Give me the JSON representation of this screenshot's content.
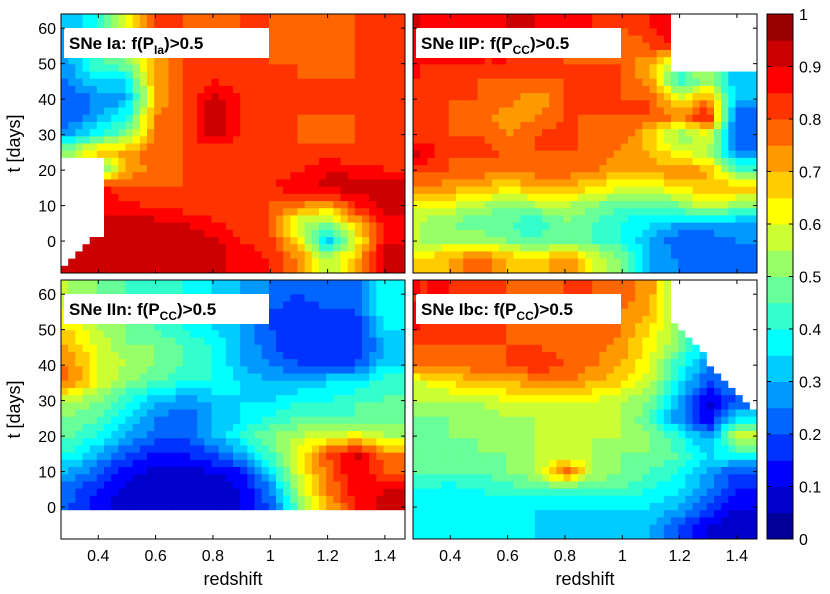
{
  "chart_data": {
    "type": "heatmap",
    "colormap": "jet",
    "colorbar": {
      "range": [
        0,
        1
      ],
      "ticks": [
        "0",
        "0.1",
        "0.2",
        "0.3",
        "0.4",
        "0.5",
        "0.6",
        "0.7",
        "0.8",
        "0.9",
        "1"
      ]
    },
    "x_range": [
      0.27,
      1.47
    ],
    "y_range": [
      -9,
      64
    ],
    "x_ticks": [
      "0.4",
      "0.6",
      "0.8",
      "1",
      "1.2",
      "1.4"
    ],
    "y_ticks": [
      "0",
      "10",
      "20",
      "30",
      "40",
      "50",
      "60"
    ],
    "xlabel": "redshift",
    "ylabel": "t [days]",
    "x": [
      0.3,
      0.4,
      0.5,
      0.6,
      0.7,
      0.8,
      0.9,
      1.0,
      1.1,
      1.2,
      1.3,
      1.4
    ],
    "y": [
      -5,
      0,
      5,
      10,
      15,
      20,
      25,
      30,
      35,
      40,
      45,
      50,
      55,
      60
    ],
    "panels": [
      {
        "id": "ia",
        "title_pre": "SNe Ia: f(P",
        "title_sub": "Ia",
        "title_post": ")>0.5",
        "z": [
          [
            0.9,
            0.9,
            0.93,
            0.93,
            0.93,
            0.92,
            0.88,
            0.85,
            0.75,
            0.55,
            0.7,
            0.92
          ],
          [
            0.9,
            0.9,
            0.93,
            0.93,
            0.93,
            0.92,
            0.85,
            0.82,
            0.65,
            0.3,
            0.6,
            0.9
          ],
          [
            0.9,
            0.9,
            0.92,
            0.92,
            0.9,
            0.86,
            0.82,
            0.8,
            0.55,
            0.5,
            0.7,
            0.88
          ],
          [
            0.9,
            0.9,
            0.86,
            0.84,
            0.82,
            0.8,
            0.8,
            0.8,
            0.75,
            0.7,
            0.85,
            0.92
          ],
          [
            0.9,
            0.9,
            0.8,
            0.8,
            0.8,
            0.8,
            0.82,
            0.85,
            0.88,
            0.92,
            0.93,
            0.93
          ],
          [
            0.3,
            0.4,
            0.7,
            0.78,
            0.8,
            0.8,
            0.8,
            0.82,
            0.85,
            0.9,
            0.88,
            0.85
          ],
          [
            0.55,
            0.7,
            0.72,
            0.78,
            0.8,
            0.82,
            0.8,
            0.8,
            0.8,
            0.82,
            0.8,
            0.8
          ],
          [
            0.3,
            0.4,
            0.5,
            0.75,
            0.8,
            0.93,
            0.85,
            0.8,
            0.8,
            0.78,
            0.8,
            0.8
          ],
          [
            0.2,
            0.3,
            0.4,
            0.75,
            0.8,
            0.93,
            0.85,
            0.8,
            0.8,
            0.8,
            0.8,
            0.8
          ],
          [
            0.2,
            0.25,
            0.3,
            0.7,
            0.8,
            0.93,
            0.85,
            0.8,
            0.8,
            0.8,
            0.8,
            0.8
          ],
          [
            0.25,
            0.35,
            0.35,
            0.72,
            0.8,
            0.85,
            0.8,
            0.8,
            0.8,
            0.8,
            0.8,
            0.8
          ],
          [
            0.3,
            0.45,
            0.5,
            0.7,
            0.8,
            0.8,
            0.8,
            0.8,
            0.8,
            0.75,
            0.8,
            0.8
          ],
          [
            0.25,
            0.35,
            0.55,
            0.75,
            0.8,
            0.8,
            0.8,
            0.8,
            0.78,
            0.78,
            0.8,
            0.8
          ],
          [
            0.3,
            0.4,
            0.6,
            0.8,
            0.8,
            0.78,
            0.8,
            0.8,
            0.75,
            0.78,
            0.8,
            0.8
          ]
        ]
      },
      {
        "id": "iip",
        "title_pre": "SNe IIP: f(P",
        "title_sub": "CC",
        "title_post": ")>0.5",
        "z": [
          [
            0.65,
            0.7,
            0.8,
            0.7,
            0.65,
            0.75,
            0.6,
            0.5,
            0.3,
            0.25,
            0.2,
            0.2
          ],
          [
            0.55,
            0.55,
            0.55,
            0.5,
            0.45,
            0.5,
            0.45,
            0.4,
            0.3,
            0.2,
            0.2,
            0.25
          ],
          [
            0.55,
            0.5,
            0.45,
            0.45,
            0.4,
            0.5,
            0.45,
            0.4,
            0.35,
            0.3,
            0.3,
            0.3
          ],
          [
            0.6,
            0.6,
            0.55,
            0.5,
            0.55,
            0.55,
            0.5,
            0.45,
            0.45,
            0.5,
            0.6,
            0.5
          ],
          [
            0.75,
            0.72,
            0.7,
            0.65,
            0.7,
            0.7,
            0.65,
            0.6,
            0.6,
            0.65,
            0.7,
            0.7
          ],
          [
            0.8,
            0.8,
            0.78,
            0.75,
            0.78,
            0.78,
            0.75,
            0.7,
            0.72,
            0.75,
            0.7,
            0.45
          ],
          [
            0.92,
            0.8,
            0.82,
            0.8,
            0.8,
            0.8,
            0.8,
            0.72,
            0.7,
            0.6,
            0.55,
            0.25
          ],
          [
            0.8,
            0.8,
            0.8,
            0.75,
            0.8,
            0.82,
            0.78,
            0.8,
            0.65,
            0.5,
            0.6,
            0.2
          ],
          [
            0.8,
            0.8,
            0.78,
            0.7,
            0.75,
            0.8,
            0.8,
            0.8,
            0.8,
            0.75,
            0.88,
            0.2
          ],
          [
            0.82,
            0.8,
            0.8,
            0.78,
            0.7,
            0.8,
            0.8,
            0.8,
            0.8,
            0.6,
            0.75,
            0.3
          ],
          [
            0.85,
            0.8,
            0.8,
            0.8,
            0.8,
            0.8,
            0.8,
            0.8,
            0.72,
            0.4,
            0.55,
            0.3
          ],
          [
            0.85,
            0.85,
            0.85,
            0.85,
            0.8,
            0.8,
            0.8,
            0.8,
            0.7,
            0.45,
            0.6,
            0.3
          ],
          [
            0.88,
            0.85,
            0.85,
            0.85,
            0.85,
            0.8,
            0.78,
            0.75,
            0.8,
            0.85,
            0.8,
            0.3
          ],
          [
            0.9,
            0.88,
            0.88,
            0.9,
            0.9,
            0.88,
            0.85,
            0.8,
            0.85,
            0.92,
            0.8,
            0.3
          ]
        ]
      },
      {
        "id": "iin",
        "title_pre": "SNe IIn: f(P",
        "title_sub": "CC",
        "title_post": ")>0.5",
        "z": [
          [
            0.2,
            0.12,
            0.08,
            0.05,
            0.05,
            0.05,
            0.1,
            0.2,
            0.5,
            0.7,
            0.85,
            0.93
          ],
          [
            0.2,
            0.12,
            0.06,
            0.05,
            0.05,
            0.05,
            0.1,
            0.2,
            0.5,
            0.7,
            0.85,
            0.93
          ],
          [
            0.22,
            0.15,
            0.08,
            0.05,
            0.05,
            0.05,
            0.1,
            0.25,
            0.55,
            0.75,
            0.88,
            0.9
          ],
          [
            0.3,
            0.22,
            0.12,
            0.08,
            0.08,
            0.1,
            0.15,
            0.35,
            0.6,
            0.78,
            0.9,
            0.8
          ],
          [
            0.4,
            0.3,
            0.2,
            0.15,
            0.15,
            0.2,
            0.3,
            0.45,
            0.62,
            0.8,
            0.92,
            0.75
          ],
          [
            0.45,
            0.4,
            0.3,
            0.22,
            0.2,
            0.3,
            0.4,
            0.5,
            0.55,
            0.6,
            0.62,
            0.55
          ],
          [
            0.5,
            0.45,
            0.35,
            0.25,
            0.2,
            0.3,
            0.35,
            0.4,
            0.45,
            0.45,
            0.45,
            0.45
          ],
          [
            0.55,
            0.5,
            0.4,
            0.3,
            0.28,
            0.3,
            0.35,
            0.35,
            0.4,
            0.4,
            0.45,
            0.45
          ],
          [
            0.75,
            0.6,
            0.5,
            0.45,
            0.4,
            0.4,
            0.35,
            0.3,
            0.3,
            0.35,
            0.35,
            0.45
          ],
          [
            0.75,
            0.6,
            0.55,
            0.5,
            0.45,
            0.4,
            0.3,
            0.25,
            0.2,
            0.2,
            0.2,
            0.35
          ],
          [
            0.7,
            0.6,
            0.5,
            0.5,
            0.45,
            0.4,
            0.3,
            0.22,
            0.15,
            0.18,
            0.15,
            0.3
          ],
          [
            0.65,
            0.55,
            0.5,
            0.45,
            0.4,
            0.35,
            0.3,
            0.2,
            0.15,
            0.2,
            0.15,
            0.35
          ],
          [
            0.6,
            0.55,
            0.5,
            0.45,
            0.4,
            0.35,
            0.3,
            0.2,
            0.15,
            0.2,
            0.2,
            0.4
          ],
          [
            0.55,
            0.5,
            0.45,
            0.4,
            0.4,
            0.35,
            0.3,
            0.25,
            0.2,
            0.25,
            0.2,
            0.4
          ]
        ]
      },
      {
        "id": "ibc",
        "title_pre": "SNe Ibc: f(P",
        "title_sub": "CC",
        "title_post": ")>0.5",
        "z": [
          [
            0.35,
            0.4,
            0.38,
            0.4,
            0.35,
            0.3,
            0.32,
            0.35,
            0.3,
            0.2,
            0.1,
            0.05
          ],
          [
            0.38,
            0.4,
            0.38,
            0.35,
            0.35,
            0.35,
            0.35,
            0.35,
            0.35,
            0.3,
            0.2,
            0.1
          ],
          [
            0.4,
            0.38,
            0.4,
            0.42,
            0.45,
            0.45,
            0.45,
            0.45,
            0.4,
            0.35,
            0.25,
            0.15
          ],
          [
            0.45,
            0.45,
            0.45,
            0.5,
            0.55,
            0.8,
            0.55,
            0.5,
            0.45,
            0.4,
            0.3,
            0.2
          ],
          [
            0.45,
            0.45,
            0.5,
            0.5,
            0.55,
            0.55,
            0.55,
            0.5,
            0.5,
            0.45,
            0.35,
            0.4
          ],
          [
            0.48,
            0.5,
            0.5,
            0.52,
            0.55,
            0.55,
            0.55,
            0.55,
            0.5,
            0.4,
            0.25,
            0.6
          ],
          [
            0.5,
            0.5,
            0.52,
            0.55,
            0.55,
            0.55,
            0.55,
            0.55,
            0.45,
            0.25,
            0.1,
            0.35
          ],
          [
            0.55,
            0.55,
            0.55,
            0.6,
            0.6,
            0.6,
            0.6,
            0.55,
            0.5,
            0.3,
            0.08,
            0.2
          ],
          [
            0.6,
            0.65,
            0.7,
            0.7,
            0.72,
            0.75,
            0.7,
            0.65,
            0.55,
            0.35,
            0.2,
            0.3
          ],
          [
            0.75,
            0.75,
            0.78,
            0.8,
            0.85,
            0.8,
            0.75,
            0.7,
            0.6,
            0.4,
            0.25,
            0.3
          ],
          [
            0.8,
            0.8,
            0.8,
            0.8,
            0.8,
            0.78,
            0.78,
            0.72,
            0.62,
            0.5,
            0.3,
            0.3
          ],
          [
            0.85,
            0.82,
            0.8,
            0.8,
            0.75,
            0.78,
            0.8,
            0.75,
            0.65,
            0.5,
            0.3,
            0.3
          ],
          [
            0.85,
            0.82,
            0.82,
            0.8,
            0.75,
            0.8,
            0.8,
            0.75,
            0.7,
            0.5,
            0.3,
            0.3
          ],
          [
            0.85,
            0.85,
            0.82,
            0.8,
            0.78,
            0.8,
            0.8,
            0.78,
            0.72,
            0.5,
            0.3,
            0.3
          ]
        ]
      }
    ]
  }
}
